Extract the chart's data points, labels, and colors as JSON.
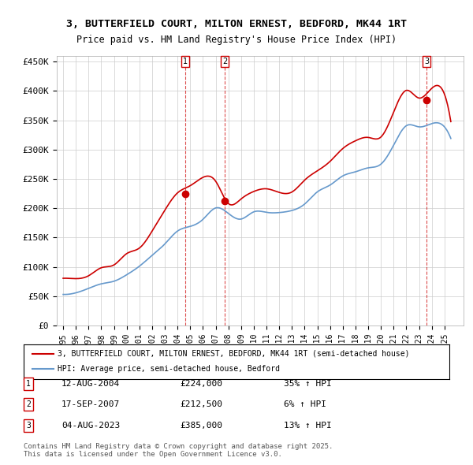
{
  "title": "3, BUTTERFIELD COURT, MILTON ERNEST, BEDFORD, MK44 1RT",
  "subtitle": "Price paid vs. HM Land Registry's House Price Index (HPI)",
  "legend_line1": "3, BUTTERFIELD COURT, MILTON ERNEST, BEDFORD, MK44 1RT (semi-detached house)",
  "legend_line2": "HPI: Average price, semi-detached house, Bedford",
  "footer": "Contains HM Land Registry data © Crown copyright and database right 2025.\nThis data is licensed under the Open Government Licence v3.0.",
  "transactions": [
    {
      "label": "1",
      "date": "12-AUG-2004",
      "price": 224000,
      "hpi_change": "35% ↑ HPI",
      "x_year": 2004.62
    },
    {
      "label": "2",
      "date": "17-SEP-2007",
      "price": 212500,
      "hpi_change": "6% ↑ HPI",
      "x_year": 2007.71
    },
    {
      "label": "3",
      "date": "04-AUG-2023",
      "price": 385000,
      "hpi_change": "13% ↑ HPI",
      "x_year": 2023.59
    }
  ],
  "ylim": [
    0,
    460000
  ],
  "xlim_start": 1994.5,
  "xlim_end": 2026.5,
  "hpi_color": "#6699cc",
  "price_color": "#cc0000",
  "grid_color": "#cccccc",
  "background_color": "#ffffff",
  "yticks": [
    0,
    50000,
    100000,
    150000,
    200000,
    250000,
    300000,
    350000,
    400000,
    450000
  ],
  "ytick_labels": [
    "£0",
    "£50K",
    "£100K",
    "£150K",
    "£200K",
    "£250K",
    "£300K",
    "£350K",
    "£400K",
    "£450K"
  ],
  "hpi_base_year": 1995,
  "hpi_base_value": 52000
}
